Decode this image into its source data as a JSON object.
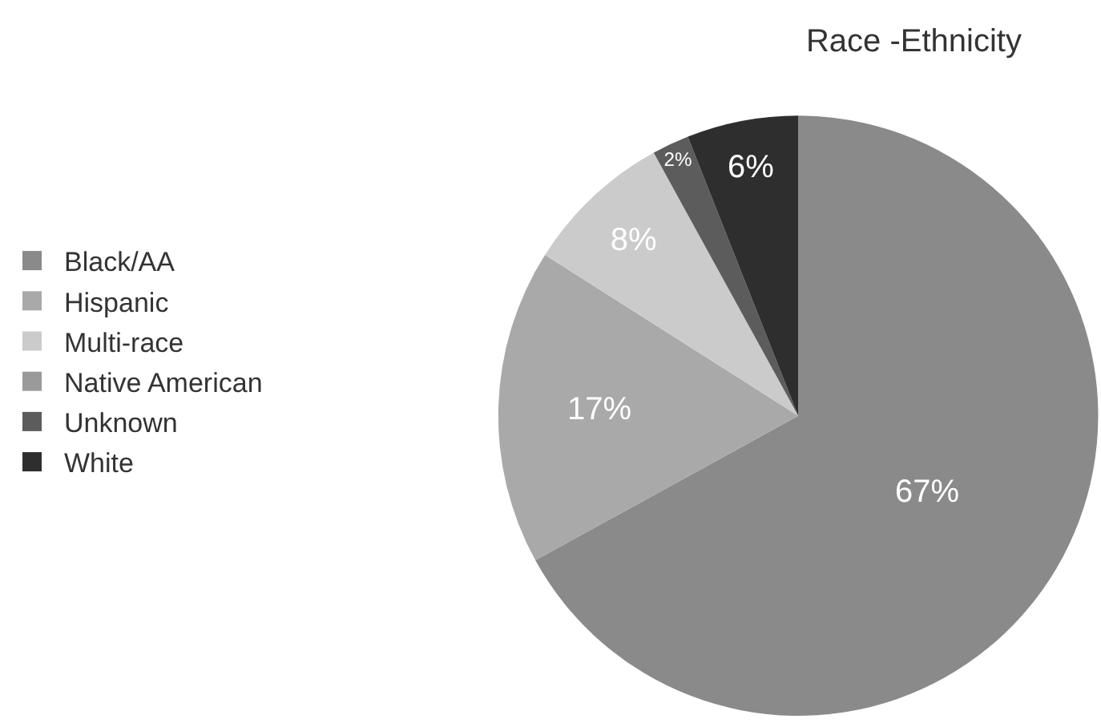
{
  "chart_data": {
    "type": "pie",
    "title": "Race -Ethnicity",
    "categories": [
      "Black/AA",
      "Hispanic",
      "Multi-race",
      "Native American",
      "Unknown",
      "White"
    ],
    "values": [
      67,
      17,
      8,
      0,
      2,
      6
    ],
    "colors": [
      "#8a8a8a",
      "#a9a9a9",
      "#cbcbcb",
      "#9a9a9a",
      "#5c5c5c",
      "#2e2e2e"
    ],
    "value_labels": [
      "67%",
      "17%",
      "8%",
      null,
      "2%",
      "6%"
    ],
    "legend": "left"
  }
}
